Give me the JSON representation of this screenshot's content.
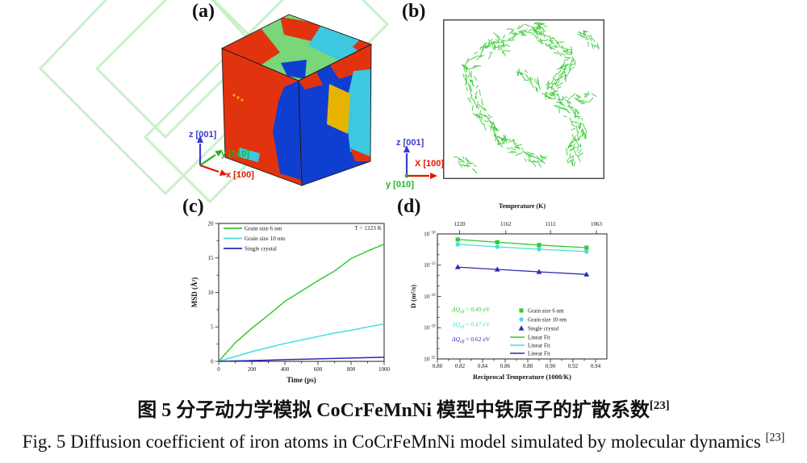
{
  "colors": {
    "series_green": "#33cc33",
    "series_cyan": "#45dede",
    "series_navy": "#2b2bb4",
    "grain_red": "#e2330f",
    "grain_blue": "#0f3fd1",
    "grain_cyan": "#3ec8e0",
    "grain_green": "#79d679",
    "grain_yellow": "#e6b400",
    "axis_z_blue": "#3a3ad0",
    "axis_y_green": "#22b422",
    "axis_x_red": "#e01800",
    "watermark_green": "#c9f0c9",
    "dislocation_green": "#2ec82e",
    "box_border": "#444444"
  },
  "panels": {
    "a": {
      "label": "(a)",
      "axis_z": "z [001]",
      "axis_y": "y [010]",
      "axis_x": "x [100]"
    },
    "b": {
      "label": "(b)",
      "axis_z": "z [001]",
      "axis_x": "X [100]",
      "axis_y": "y [010]",
      "clusters": [
        [
          30,
          58,
          88,
          14,
          45,
          8
        ],
        [
          88,
          14,
          128,
          10,
          30,
          7
        ],
        [
          112,
          12,
          162,
          48,
          50,
          8
        ],
        [
          162,
          48,
          132,
          88,
          45,
          8
        ],
        [
          132,
          88,
          172,
          132,
          50,
          8
        ],
        [
          172,
          132,
          158,
          178,
          45,
          9
        ],
        [
          30,
          58,
          44,
          112,
          40,
          8
        ],
        [
          44,
          112,
          72,
          152,
          40,
          8
        ],
        [
          72,
          152,
          124,
          178,
          45,
          8
        ],
        [
          96,
          62,
          118,
          86,
          22,
          7
        ],
        [
          14,
          172,
          42,
          186,
          18,
          6
        ],
        [
          172,
          16,
          190,
          36,
          18,
          6
        ],
        [
          58,
          20,
          80,
          40,
          15,
          6
        ],
        [
          150,
          100,
          188,
          96,
          18,
          6
        ]
      ]
    },
    "c": {
      "label": "(c)"
    },
    "d": {
      "label": "(d)"
    }
  },
  "chart_data": [
    {
      "type": "line",
      "panel": "c",
      "title": "",
      "xlabel": "Time (ps)",
      "ylabel": "MSD (Å²)",
      "xlim": [
        0,
        1000
      ],
      "ylim": [
        0,
        20
      ],
      "xticks": [
        0,
        200,
        400,
        600,
        800,
        1000
      ],
      "yticks": [
        0,
        5,
        10,
        15,
        20
      ],
      "grid": false,
      "legend_position": "top-left",
      "annotation": "T = 1223 K",
      "x": [
        0,
        100,
        200,
        300,
        400,
        500,
        600,
        700,
        800,
        900,
        1000
      ],
      "series": [
        {
          "name": "Grain size 6 nm",
          "color": "#33cc33",
          "values": [
            0,
            2.7,
            4.8,
            6.7,
            8.7,
            10.2,
            11.7,
            13.1,
            14.9,
            16.0,
            17.0
          ]
        },
        {
          "name": "Grain size 10 nm",
          "color": "#45dede",
          "values": [
            0,
            0.7,
            1.4,
            2.0,
            2.6,
            3.1,
            3.6,
            4.1,
            4.5,
            5.0,
            5.4
          ]
        },
        {
          "name": "Single crystal",
          "color": "#2b2bb4",
          "values": [
            0,
            0.06,
            0.12,
            0.18,
            0.24,
            0.3,
            0.36,
            0.42,
            0.48,
            0.54,
            0.6
          ]
        }
      ]
    },
    {
      "type": "scatter",
      "panel": "d",
      "top_axis": {
        "label": "Temperature (K)",
        "ticks": [
          1220,
          1162,
          1111,
          1063
        ]
      },
      "xlabel": "Reciprocal Temperature (1000/K)",
      "ylabel": "D (m²/s)",
      "xlim": [
        0.8,
        0.95
      ],
      "xticks": [
        0.8,
        0.82,
        0.84,
        0.86,
        0.88,
        0.9,
        0.92,
        0.94
      ],
      "ylim_exp": [
        -22,
        -10
      ],
      "ytick_exps": [
        -10,
        -13,
        -16,
        -19,
        -22
      ],
      "grid": false,
      "legend_position": "bottom-right",
      "x": [
        0.818,
        0.853,
        0.89,
        0.932
      ],
      "series": [
        {
          "name": "Grain size 6 nm",
          "marker": "square",
          "color": "#33cc33",
          "values": [
            2.9e-11,
            1.6e-11,
            8.6e-12,
            4.8e-12
          ]
        },
        {
          "name": "Grain size 10 nm",
          "marker": "circle",
          "color": "#45dede",
          "values": [
            1e-11,
            5.8e-12,
            3.4e-12,
            2e-12
          ]
        },
        {
          "name": "Single crystal",
          "marker": "triangle",
          "color": "#2b2bb4",
          "values": [
            6.6e-14,
            3.9e-14,
            2.3e-14,
            1.3e-14
          ]
        }
      ],
      "fits": [
        {
          "name": "Linear Fit",
          "color": "#33cc33"
        },
        {
          "name": "Linear Fit",
          "color": "#45dede"
        },
        {
          "name": "Linear Fit",
          "color": "#2b2bb4"
        }
      ],
      "annotations": [
        {
          "q": "ΔQ",
          "sub": "eff",
          "rest": " = 0.49 eV",
          "color": "#33cc33"
        },
        {
          "q": "ΔQ",
          "sub": "eff",
          "rest": " = 0.47 eV",
          "color": "#45dede"
        },
        {
          "q": "ΔQ",
          "sub": "eff",
          "rest": " = 0.62 eV",
          "color": "#2b2bb4"
        }
      ]
    }
  ],
  "captions": {
    "zh": "图 5  分子动力学模拟 CoCrFeMnNi 模型中铁原子的扩散系数",
    "zh_ref": "[23]",
    "en": "Fig. 5 Diffusion coefficient of iron atoms in CoCrFeMnNi model simulated by molecular dynamics ",
    "en_ref": "[23]"
  }
}
